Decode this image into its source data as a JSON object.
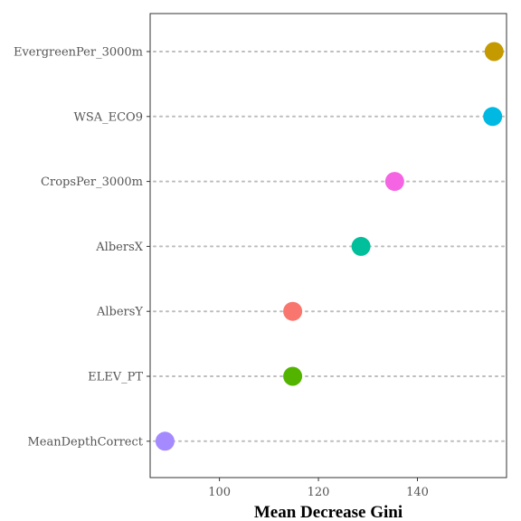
{
  "chart_data": {
    "type": "dot",
    "title": "",
    "xlabel": "Mean Decrease Gini",
    "ylabel": "",
    "xlim": [
      86,
      158
    ],
    "xticks": [
      100,
      120,
      140
    ],
    "grid": false,
    "legend": "none",
    "points": [
      {
        "label": "EvergreenPer_3000m",
        "value": 155.5,
        "color": "#C49A00"
      },
      {
        "label": "WSA_ECO9",
        "value": 155.2,
        "color": "#00B9E3"
      },
      {
        "label": "CropsPer_3000m",
        "value": 135.4,
        "color": "#F564E3"
      },
      {
        "label": "AlbersX",
        "value": 128.6,
        "color": "#00BF9A"
      },
      {
        "label": "AlbersY",
        "value": 114.8,
        "color": "#F8766D"
      },
      {
        "label": "ELEV_PT",
        "value": 114.8,
        "color": "#53B400"
      },
      {
        "label": "MeanDepthCorrect",
        "value": 89.0,
        "color": "#A58AFF"
      }
    ]
  }
}
